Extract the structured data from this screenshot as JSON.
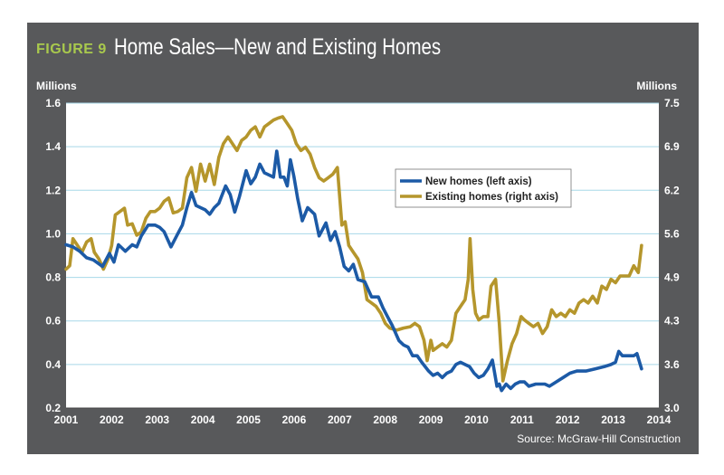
{
  "figure": {
    "label": "FIGURE 9",
    "title": "Home Sales—New and Existing Homes",
    "source": "Source: McGraw-Hill Construction"
  },
  "colors": {
    "panel": "#58595b",
    "plot_bg": "#ffffff",
    "grid": "#a7d8e8",
    "new_homes": "#1c5aa6",
    "existing_homes": "#b5962c",
    "figure_label": "#a9c94d"
  },
  "chart_data": {
    "type": "line",
    "title": "Home Sales—New and Existing Homes",
    "x": {
      "range": [
        2001,
        2014
      ],
      "ticks": [
        "2001",
        "2002",
        "2003",
        "2004",
        "2005",
        "2006",
        "2007",
        "2008",
        "2009",
        "2010",
        "2011",
        "2012",
        "2013",
        "2014"
      ]
    },
    "y_left": {
      "label": "Millions",
      "range": [
        0.2,
        1.6
      ],
      "ticks": [
        "0.2",
        "0.4",
        "0.6",
        "0.8",
        "1.0",
        "1.2",
        "1.4",
        "1.6"
      ]
    },
    "y_right": {
      "label": "Millions",
      "range": [
        3.0,
        7.5
      ],
      "ticks": [
        "3.0",
        "3.6",
        "4.3",
        "4.9",
        "5.6",
        "6.2",
        "6.9",
        "7.5"
      ]
    },
    "grid": true,
    "legend_position": "center-right",
    "series": [
      {
        "name": "New homes (left axis)",
        "axis": "left",
        "points": [
          [
            2001.0,
            0.95
          ],
          [
            2001.15,
            0.94
          ],
          [
            2001.3,
            0.92
          ],
          [
            2001.45,
            0.89
          ],
          [
            2001.6,
            0.88
          ],
          [
            2001.8,
            0.85
          ],
          [
            2001.95,
            0.91
          ],
          [
            2002.05,
            0.87
          ],
          [
            2002.15,
            0.95
          ],
          [
            2002.3,
            0.92
          ],
          [
            2002.45,
            0.95
          ],
          [
            2002.55,
            0.94
          ],
          [
            2002.65,
            0.99
          ],
          [
            2002.8,
            1.04
          ],
          [
            2002.95,
            1.04
          ],
          [
            2003.05,
            1.03
          ],
          [
            2003.15,
            1.01
          ],
          [
            2003.3,
            0.94
          ],
          [
            2003.45,
            1.0
          ],
          [
            2003.55,
            1.04
          ],
          [
            2003.65,
            1.12
          ],
          [
            2003.75,
            1.19
          ],
          [
            2003.85,
            1.13
          ],
          [
            2003.95,
            1.12
          ],
          [
            2004.05,
            1.11
          ],
          [
            2004.15,
            1.09
          ],
          [
            2004.25,
            1.12
          ],
          [
            2004.35,
            1.14
          ],
          [
            2004.5,
            1.22
          ],
          [
            2004.6,
            1.18
          ],
          [
            2004.7,
            1.1
          ],
          [
            2004.8,
            1.17
          ],
          [
            2004.95,
            1.29
          ],
          [
            2005.05,
            1.23
          ],
          [
            2005.15,
            1.26
          ],
          [
            2005.25,
            1.32
          ],
          [
            2005.35,
            1.28
          ],
          [
            2005.45,
            1.27
          ],
          [
            2005.55,
            1.26
          ],
          [
            2005.62,
            1.38
          ],
          [
            2005.7,
            1.26
          ],
          [
            2005.78,
            1.26
          ],
          [
            2005.85,
            1.22
          ],
          [
            2005.92,
            1.34
          ],
          [
            2006.0,
            1.26
          ],
          [
            2006.08,
            1.16
          ],
          [
            2006.18,
            1.06
          ],
          [
            2006.3,
            1.12
          ],
          [
            2006.45,
            1.09
          ],
          [
            2006.55,
            0.99
          ],
          [
            2006.7,
            1.05
          ],
          [
            2006.8,
            0.97
          ],
          [
            2006.9,
            1.01
          ],
          [
            2007.0,
            0.94
          ],
          [
            2007.1,
            0.85
          ],
          [
            2007.2,
            0.83
          ],
          [
            2007.3,
            0.86
          ],
          [
            2007.4,
            0.79
          ],
          [
            2007.55,
            0.78
          ],
          [
            2007.7,
            0.71
          ],
          [
            2007.85,
            0.71
          ],
          [
            2007.95,
            0.66
          ],
          [
            2008.05,
            0.62
          ],
          [
            2008.15,
            0.58
          ],
          [
            2008.3,
            0.51
          ],
          [
            2008.4,
            0.49
          ],
          [
            2008.5,
            0.48
          ],
          [
            2008.6,
            0.44
          ],
          [
            2008.7,
            0.44
          ],
          [
            2008.8,
            0.41
          ],
          [
            2008.95,
            0.37
          ],
          [
            2009.05,
            0.35
          ],
          [
            2009.15,
            0.36
          ],
          [
            2009.25,
            0.34
          ],
          [
            2009.35,
            0.36
          ],
          [
            2009.45,
            0.37
          ],
          [
            2009.55,
            0.4
          ],
          [
            2009.65,
            0.41
          ],
          [
            2009.75,
            0.4
          ],
          [
            2009.85,
            0.39
          ],
          [
            2009.95,
            0.36
          ],
          [
            2010.05,
            0.34
          ],
          [
            2010.15,
            0.35
          ],
          [
            2010.25,
            0.38
          ],
          [
            2010.35,
            0.42
          ],
          [
            2010.45,
            0.3
          ],
          [
            2010.5,
            0.31
          ],
          [
            2010.55,
            0.28
          ],
          [
            2010.65,
            0.31
          ],
          [
            2010.75,
            0.29
          ],
          [
            2010.85,
            0.31
          ],
          [
            2010.95,
            0.32
          ],
          [
            2011.05,
            0.32
          ],
          [
            2011.15,
            0.3
          ],
          [
            2011.3,
            0.31
          ],
          [
            2011.5,
            0.31
          ],
          [
            2011.6,
            0.3
          ],
          [
            2011.75,
            0.32
          ],
          [
            2011.9,
            0.34
          ],
          [
            2012.05,
            0.36
          ],
          [
            2012.2,
            0.37
          ],
          [
            2012.4,
            0.37
          ],
          [
            2012.6,
            0.38
          ],
          [
            2012.8,
            0.39
          ],
          [
            2012.95,
            0.4
          ],
          [
            2013.05,
            0.41
          ],
          [
            2013.12,
            0.46
          ],
          [
            2013.2,
            0.44
          ],
          [
            2013.3,
            0.44
          ],
          [
            2013.45,
            0.44
          ],
          [
            2013.52,
            0.45
          ],
          [
            2013.62,
            0.38
          ]
        ]
      },
      {
        "name": "Existing homes (right axis)",
        "axis": "right",
        "points": [
          [
            2001.0,
            5.05
          ],
          [
            2001.08,
            5.1
          ],
          [
            2001.15,
            5.5
          ],
          [
            2001.25,
            5.4
          ],
          [
            2001.35,
            5.3
          ],
          [
            2001.45,
            5.45
          ],
          [
            2001.55,
            5.5
          ],
          [
            2001.62,
            5.3
          ],
          [
            2001.72,
            5.2
          ],
          [
            2001.82,
            5.05
          ],
          [
            2001.92,
            5.2
          ],
          [
            2002.0,
            5.4
          ],
          [
            2002.08,
            5.85
          ],
          [
            2002.18,
            5.9
          ],
          [
            2002.28,
            5.95
          ],
          [
            2002.35,
            5.7
          ],
          [
            2002.45,
            5.72
          ],
          [
            2002.55,
            5.55
          ],
          [
            2002.65,
            5.6
          ],
          [
            2002.75,
            5.8
          ],
          [
            2002.85,
            5.9
          ],
          [
            2002.95,
            5.9
          ],
          [
            2003.05,
            5.95
          ],
          [
            2003.15,
            6.05
          ],
          [
            2003.25,
            6.1
          ],
          [
            2003.35,
            5.88
          ],
          [
            2003.45,
            5.9
          ],
          [
            2003.55,
            5.95
          ],
          [
            2003.65,
            6.4
          ],
          [
            2003.75,
            6.55
          ],
          [
            2003.85,
            6.2
          ],
          [
            2003.95,
            6.6
          ],
          [
            2004.05,
            6.35
          ],
          [
            2004.15,
            6.6
          ],
          [
            2004.25,
            6.3
          ],
          [
            2004.35,
            6.7
          ],
          [
            2004.45,
            6.9
          ],
          [
            2004.55,
            7.0
          ],
          [
            2004.65,
            6.9
          ],
          [
            2004.75,
            6.8
          ],
          [
            2004.85,
            6.95
          ],
          [
            2004.95,
            7.0
          ],
          [
            2005.05,
            7.1
          ],
          [
            2005.15,
            7.15
          ],
          [
            2005.25,
            7.0
          ],
          [
            2005.35,
            7.15
          ],
          [
            2005.45,
            7.2
          ],
          [
            2005.55,
            7.25
          ],
          [
            2005.65,
            7.28
          ],
          [
            2005.75,
            7.3
          ],
          [
            2005.85,
            7.2
          ],
          [
            2005.95,
            7.1
          ],
          [
            2006.05,
            6.9
          ],
          [
            2006.15,
            6.8
          ],
          [
            2006.25,
            6.85
          ],
          [
            2006.35,
            6.75
          ],
          [
            2006.45,
            6.55
          ],
          [
            2006.55,
            6.4
          ],
          [
            2006.65,
            6.35
          ],
          [
            2006.75,
            6.4
          ],
          [
            2006.85,
            6.45
          ],
          [
            2006.95,
            6.55
          ],
          [
            2007.05,
            5.7
          ],
          [
            2007.12,
            5.75
          ],
          [
            2007.2,
            5.4
          ],
          [
            2007.3,
            5.3
          ],
          [
            2007.4,
            5.2
          ],
          [
            2007.5,
            5.0
          ],
          [
            2007.6,
            4.6
          ],
          [
            2007.7,
            4.55
          ],
          [
            2007.8,
            4.5
          ],
          [
            2007.9,
            4.4
          ],
          [
            2008.0,
            4.25
          ],
          [
            2008.1,
            4.18
          ],
          [
            2008.25,
            4.15
          ],
          [
            2008.4,
            4.18
          ],
          [
            2008.55,
            4.2
          ],
          [
            2008.65,
            4.25
          ],
          [
            2008.75,
            4.2
          ],
          [
            2008.85,
            4.0
          ],
          [
            2008.92,
            3.7
          ],
          [
            2009.0,
            4.0
          ],
          [
            2009.05,
            3.85
          ],
          [
            2009.15,
            3.9
          ],
          [
            2009.25,
            3.95
          ],
          [
            2009.35,
            3.9
          ],
          [
            2009.45,
            4.0
          ],
          [
            2009.55,
            4.4
          ],
          [
            2009.65,
            4.5
          ],
          [
            2009.75,
            4.6
          ],
          [
            2009.82,
            4.9
          ],
          [
            2009.86,
            5.5
          ],
          [
            2009.92,
            4.75
          ],
          [
            2009.98,
            4.4
          ],
          [
            2010.05,
            4.3
          ],
          [
            2010.15,
            4.35
          ],
          [
            2010.25,
            4.35
          ],
          [
            2010.32,
            4.8
          ],
          [
            2010.42,
            4.9
          ],
          [
            2010.5,
            4.25
          ],
          [
            2010.58,
            3.4
          ],
          [
            2010.68,
            3.7
          ],
          [
            2010.78,
            3.95
          ],
          [
            2010.88,
            4.1
          ],
          [
            2010.98,
            4.35
          ],
          [
            2011.05,
            4.3
          ],
          [
            2011.15,
            4.25
          ],
          [
            2011.25,
            4.2
          ],
          [
            2011.35,
            4.25
          ],
          [
            2011.45,
            4.1
          ],
          [
            2011.55,
            4.2
          ],
          [
            2011.65,
            4.45
          ],
          [
            2011.75,
            4.35
          ],
          [
            2011.85,
            4.4
          ],
          [
            2011.95,
            4.35
          ],
          [
            2012.05,
            4.45
          ],
          [
            2012.15,
            4.4
          ],
          [
            2012.25,
            4.55
          ],
          [
            2012.35,
            4.6
          ],
          [
            2012.45,
            4.55
          ],
          [
            2012.55,
            4.65
          ],
          [
            2012.65,
            4.55
          ],
          [
            2012.75,
            4.8
          ],
          [
            2012.85,
            4.75
          ],
          [
            2012.95,
            4.9
          ],
          [
            2013.05,
            4.85
          ],
          [
            2013.15,
            4.95
          ],
          [
            2013.25,
            4.95
          ],
          [
            2013.35,
            4.95
          ],
          [
            2013.45,
            5.1
          ],
          [
            2013.55,
            5.0
          ],
          [
            2013.62,
            5.4
          ]
        ]
      }
    ]
  }
}
